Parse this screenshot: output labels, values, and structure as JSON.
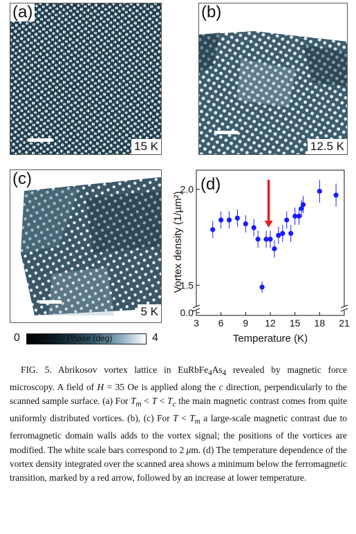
{
  "panels": {
    "a": {
      "label": "(a)",
      "temperature": "15 K"
    },
    "b": {
      "label": "(b)",
      "temperature": "12.5 K"
    },
    "c": {
      "label": "(c)",
      "temperature": "5 K"
    },
    "d": {
      "label": "(d)"
    }
  },
  "colorbar": {
    "min": "0",
    "max": "4",
    "label": "Phase (deg)"
  },
  "colors": {
    "marker": "#1a1aff",
    "arrow": "#e02020"
  },
  "chart_data": {
    "type": "scatter",
    "panel_label": "(d)",
    "xlabel": "Temperature (K)",
    "ylabel": "Vortex density (1/µm²)",
    "xlim": [
      3,
      21
    ],
    "xticks": [
      "3",
      "6",
      "9",
      "12",
      "15",
      "18",
      "21"
    ],
    "yticks": [
      "0.0",
      "1.5",
      "2.0"
    ],
    "y_axis_break": true,
    "series": [
      {
        "x": [
          5.0,
          6.0,
          7.0,
          8.0,
          9.0,
          10.0,
          10.5,
          11.0,
          11.5,
          12.0,
          12.5,
          13.0,
          13.5,
          14.0,
          14.5,
          15.0,
          15.5,
          15.8,
          16.0,
          18.0,
          20.0
        ],
        "y": [
          1.79,
          1.84,
          1.84,
          1.85,
          1.82,
          1.8,
          1.74,
          1.49,
          1.74,
          1.74,
          1.69,
          1.76,
          1.77,
          1.84,
          1.77,
          1.86,
          1.86,
          1.9,
          1.92,
          1.99,
          1.97
        ],
        "err": [
          0.045,
          0.045,
          0.045,
          0.045,
          0.045,
          0.045,
          0.045,
          0.03,
          0.045,
          0.045,
          0.045,
          0.045,
          0.045,
          0.045,
          0.045,
          0.045,
          0.045,
          0.045,
          0.045,
          0.06,
          0.06
        ]
      }
    ],
    "annotation": {
      "type": "arrow",
      "x": 11.8,
      "y_from": 2.05,
      "y_to": 1.8
    }
  },
  "caption": {
    "prefix": "FIG. 5. Abrikosov vortex lattice in EuRbFe",
    "sub1": "4",
    "mid1": "As",
    "sub2": "4",
    "rest1": " revealed by magnetic force microscopy. A field of ",
    "hvar": "H",
    "rest2": " = 35 Oe is applied along the ",
    "cvar": "c",
    "rest3": " direction, perpendicularly to the scanned sample surface. (a) For ",
    "tm1": "T",
    "tm1sub": "m",
    "rest4": " < ",
    "t1": "T",
    "rest5": " < ",
    "tc": "T",
    "tcsub": "c",
    "rest6": " the main magnetic contrast comes from quite uniformly distributed vortices. (b), (c) For ",
    "t2": "T",
    "rest7": " < ",
    "tm2": "T",
    "tm2sub": "m",
    "rest8": " a large-scale magnetic contrast due to ferromagnetic domain walls adds to the vortex signal; the positions of the vortices are modified. The white scale bars correspond to 2 ",
    "mu": "μ",
    "rest9": "m. (d) The temperature dependence of the vortex density integrated over the scanned area shows a minimum below the ferromagnetic transition, marked by a red arrow, followed by an increase at lower temperature."
  }
}
